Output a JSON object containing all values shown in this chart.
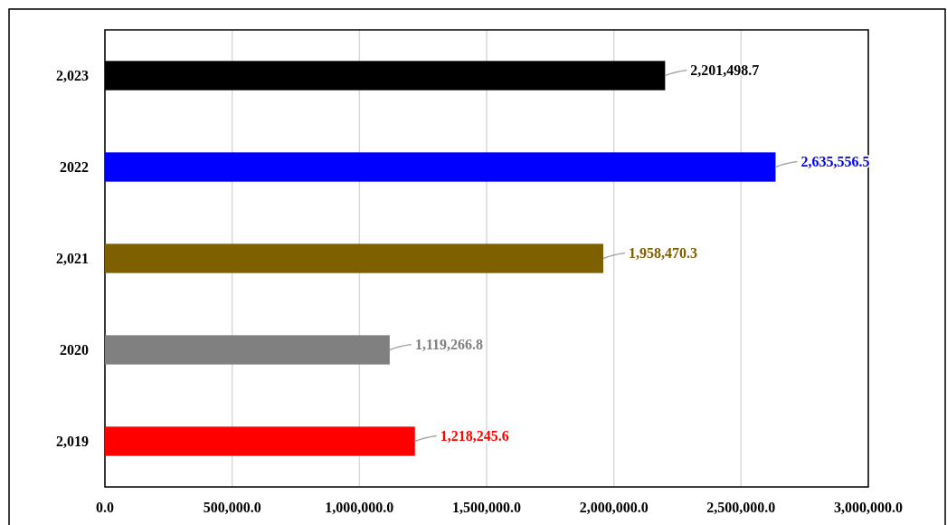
{
  "chart_data": {
    "type": "bar",
    "orientation": "horizontal",
    "categories": [
      "2,023",
      "2022",
      "2,021",
      "2020",
      "2,019"
    ],
    "values": [
      2201498.7,
      2635556.5,
      1958470.3,
      1119266.8,
      1218245.6
    ],
    "colors": [
      "#000000",
      "#0000ff",
      "#7f6000",
      "#808080",
      "#ff0000"
    ],
    "xlim": [
      0,
      3000000
    ],
    "xticks": [
      {
        "value": 0,
        "label": "0.0"
      },
      {
        "value": 500000,
        "label": "500,000.0"
      },
      {
        "value": 1000000,
        "label": "1,000,000.0"
      },
      {
        "value": 1500000,
        "label": "1,500,000.0"
      },
      {
        "value": 2000000,
        "label": "2,000,000.0"
      },
      {
        "value": 2500000,
        "label": "2,500,000.0"
      },
      {
        "value": 3000000,
        "label": "3,000,000.0"
      }
    ],
    "value_labels": [
      "2,201,498.7",
      "2,635,556.5",
      "1,958,470.3",
      "1,119,266.8",
      "1,218,245.6"
    ],
    "grid": "x"
  }
}
